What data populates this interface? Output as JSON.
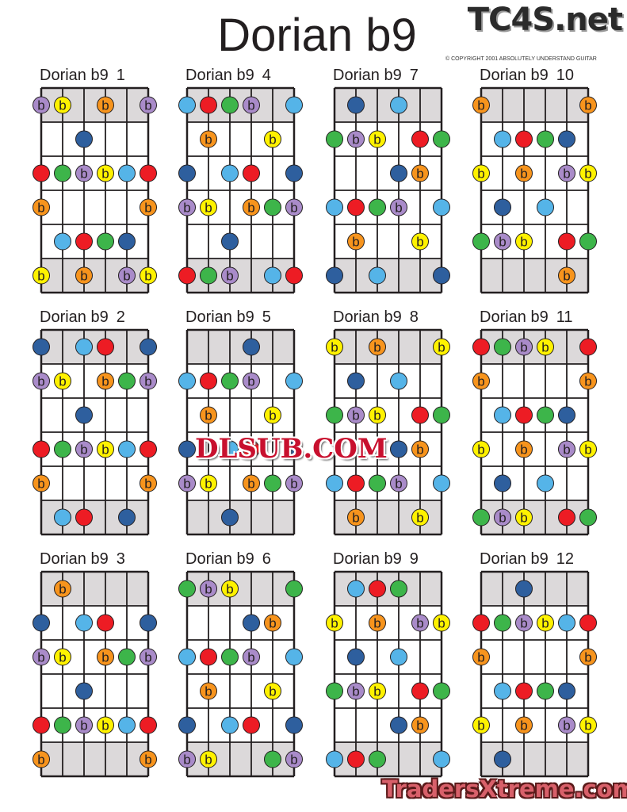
{
  "title": "Dorian b9",
  "logo": "TC4S.net",
  "copyright": "© COPYRIGHT 2001 ABSOLUTELY UNDERSTAND GUITAR",
  "watermarks": [
    "DLSUB.COM",
    "TradersXtreme.com"
  ],
  "dot_label": "b",
  "colors": {
    "P": "#a98bc9",
    "Y": "#fff200",
    "O": "#f7941d",
    "D": "#2e5f9e",
    "L": "#55b4e8",
    "R": "#ed1c24",
    "G": "#3db54a",
    "shade": "#dcd9da",
    "line": "#231f20"
  },
  "legend_codes": {
    "P": "purple flat",
    "Y": "yellow flat",
    "O": "orange flat",
    "D": "dark blue",
    "L": "light blue",
    "R": "red",
    "G": "green"
  },
  "diagrams": [
    {
      "label": "Dorian b9",
      "number": "1",
      "rows": [
        "PY.O.P",
        "..D...",
        "RGPYLR",
        "O....O",
        ".LRGD.",
        "Y.O.PY"
      ]
    },
    {
      "label": "Dorian b9",
      "number": "2",
      "rows": [
        "D.LR.D",
        "PY.OGP",
        "..D...",
        "RGPYLR",
        "O....O",
        ".LR.D."
      ]
    },
    {
      "label": "Dorian b9",
      "number": "3",
      "rows": [
        ".O....",
        "D.LR.D",
        "PY.OGP",
        "..D...",
        "RGPYLR",
        "O....O"
      ]
    },
    {
      "label": "Dorian b9",
      "number": "4",
      "rows": [
        "LRGP.L",
        ".O..Y.",
        "D.LR.D",
        "PY.OGP",
        "..D...",
        "RGP.LR"
      ]
    },
    {
      "label": "Dorian b9",
      "number": "5",
      "rows": [
        "...D..",
        "LRGP.L",
        ".O..Y.",
        "D.LR.D",
        "PY.OGP",
        "..D..."
      ]
    },
    {
      "label": "Dorian b9",
      "number": "6",
      "rows": [
        "GPY..G",
        "...DO.",
        "LRGP.L",
        ".O..Y.",
        "D.LR.D",
        "PY..GP"
      ]
    },
    {
      "label": "Dorian b9",
      "number": "7",
      "rows": [
        ".D.L..",
        "GPY.RG",
        "...DO.",
        "LRGP.L",
        ".O..Y.",
        "D.L..D"
      ]
    },
    {
      "label": "Dorian b9",
      "number": "8",
      "rows": [
        "Y.O..Y",
        ".D.L..",
        "GPY.RG",
        "...DO.",
        "LRGP.L",
        ".O..Y."
      ]
    },
    {
      "label": "Dorian b9",
      "number": "9",
      "rows": [
        ".LRG..",
        "Y.O.PY",
        ".D.L..",
        "GPY.RG",
        "...DO.",
        "LRG..L"
      ]
    },
    {
      "label": "Dorian b9",
      "number": "10",
      "rows": [
        "O....O",
        ".LRGD.",
        "Y.O.PY",
        ".D.L..",
        "GPY.RG",
        "....O."
      ]
    },
    {
      "label": "Dorian b9",
      "number": "11",
      "rows": [
        "RGPY.R",
        "O....O",
        ".LRGD.",
        "Y.O.PY",
        ".D.L..",
        "GPY.RG"
      ]
    },
    {
      "label": "Dorian b9",
      "number": "12",
      "rows": [
        "..D...",
        "RGPYLR",
        "O....O",
        ".LRGD.",
        "Y.O.PY",
        ".D...."
      ]
    }
  ]
}
